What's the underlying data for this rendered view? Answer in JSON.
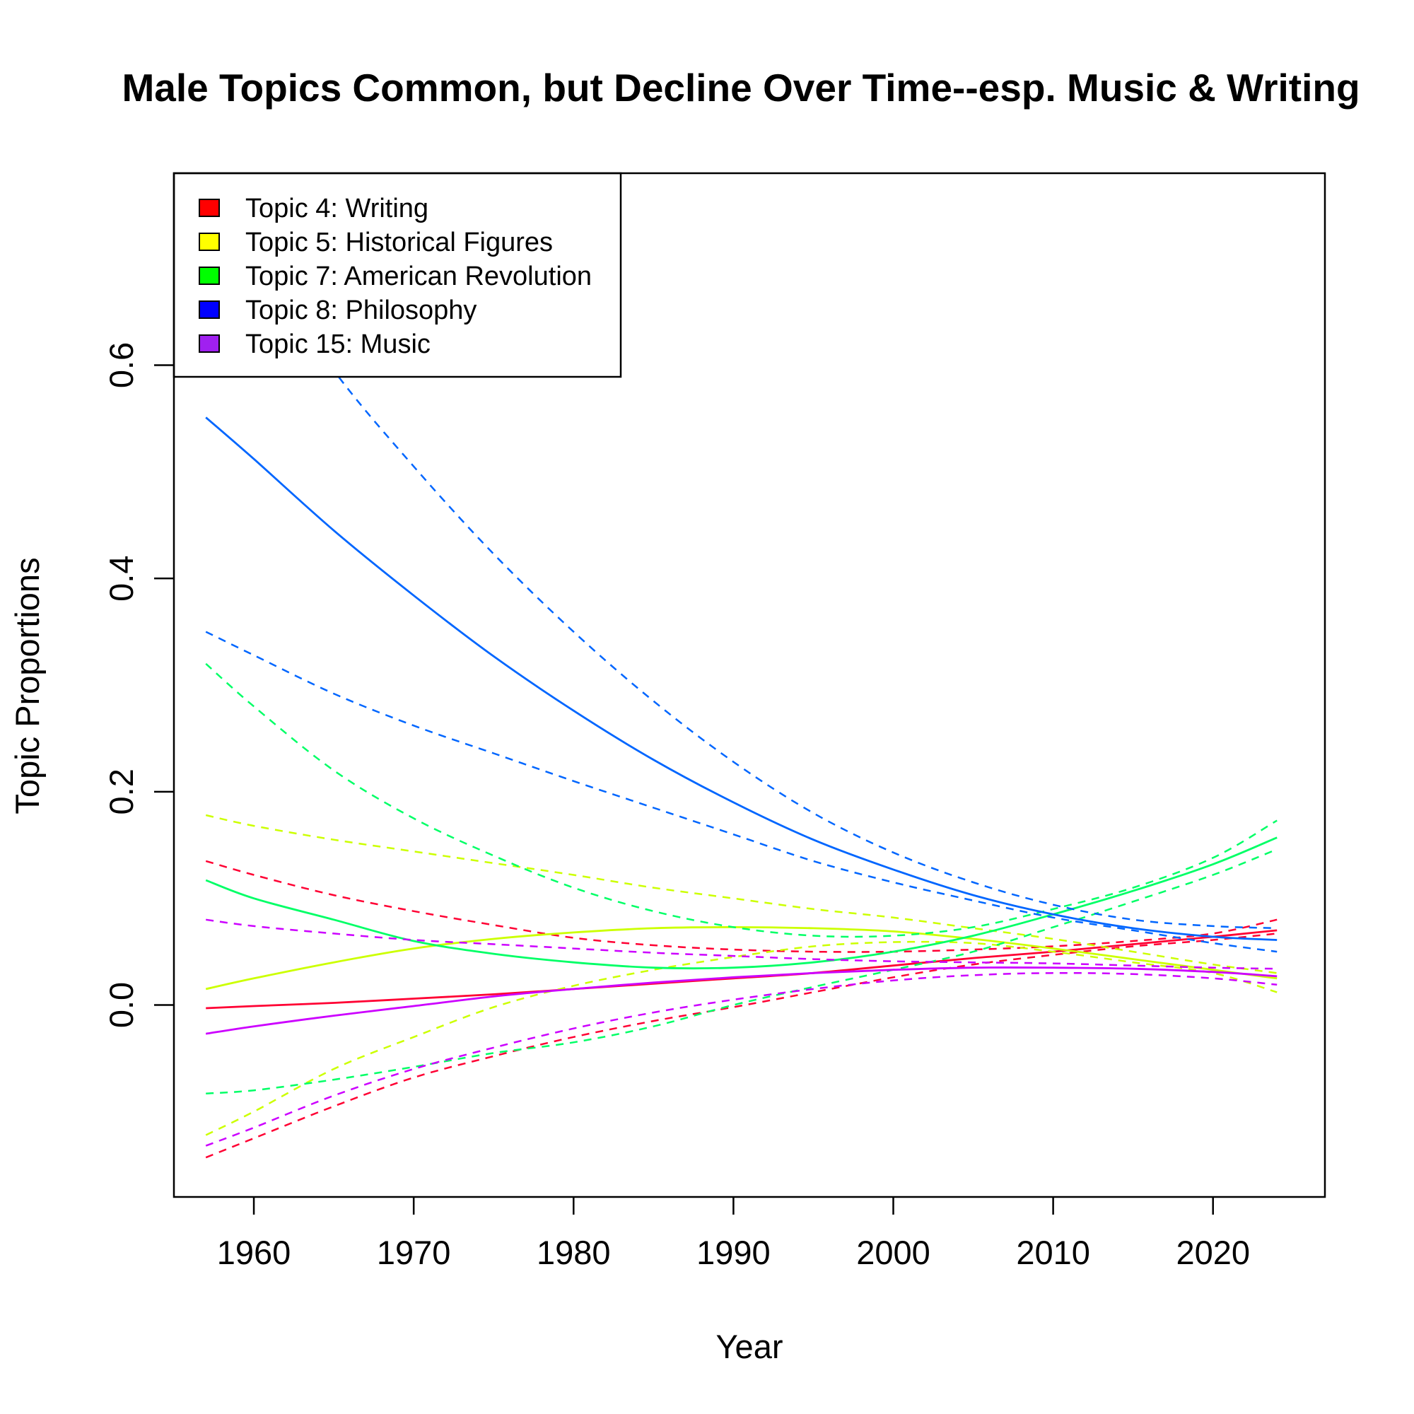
{
  "chart_data": {
    "type": "line",
    "title": "Male Topics Common, but Decline Over Time--esp. Music & Writing",
    "xlabel": "Year",
    "ylabel": "Topic Proportions",
    "xlim": [
      1955,
      2027
    ],
    "ylim": [
      -0.18,
      0.78
    ],
    "xticks": [
      1960,
      1970,
      1980,
      1990,
      2000,
      2010,
      2020
    ],
    "yticks": [
      0.0,
      0.2,
      0.4,
      0.6
    ],
    "ytick_labels": [
      "0.0",
      "0.2",
      "0.4",
      "0.6"
    ],
    "legend_position": "top-left",
    "x": [
      1957,
      1960,
      1965,
      1970,
      1975,
      1980,
      1985,
      1990,
      1995,
      2000,
      2005,
      2010,
      2015,
      2020,
      2024
    ],
    "series": [
      {
        "name": "Topic 4: Writing",
        "legend_color": "#FF0000",
        "line_color": "#FF0033",
        "values": [
          -0.003,
          -0.001,
          0.002,
          0.006,
          0.01,
          0.015,
          0.02,
          0.025,
          0.03,
          0.037,
          0.044,
          0.05,
          0.057,
          0.064,
          0.07
        ],
        "lower": [
          -0.143,
          -0.125,
          -0.095,
          -0.068,
          -0.048,
          -0.03,
          -0.015,
          -0.002,
          0.012,
          0.026,
          0.038,
          0.047,
          0.055,
          0.061,
          0.067
        ],
        "upper": [
          0.135,
          0.122,
          0.103,
          0.088,
          0.075,
          0.063,
          0.056,
          0.052,
          0.05,
          0.05,
          0.052,
          0.055,
          0.06,
          0.067,
          0.08
        ]
      },
      {
        "name": "Topic 5: Historical Figures",
        "legend_color": "#FFFF00",
        "line_color": "#CCFF00",
        "values": [
          0.015,
          0.025,
          0.04,
          0.053,
          0.062,
          0.068,
          0.072,
          0.073,
          0.072,
          0.069,
          0.062,
          0.053,
          0.043,
          0.033,
          0.025
        ],
        "lower": [
          -0.122,
          -0.1,
          -0.06,
          -0.03,
          -0.002,
          0.018,
          0.033,
          0.045,
          0.055,
          0.059,
          0.058,
          0.05,
          0.04,
          0.03,
          0.012
        ],
        "upper": [
          0.178,
          0.168,
          0.155,
          0.144,
          0.133,
          0.122,
          0.11,
          0.1,
          0.09,
          0.082,
          0.072,
          0.062,
          0.05,
          0.038,
          0.03
        ]
      },
      {
        "name": "Topic 7: American Revolution",
        "legend_color": "#00FF00",
        "line_color": "#00FF66",
        "values": [
          0.117,
          0.1,
          0.08,
          0.06,
          0.048,
          0.04,
          0.035,
          0.035,
          0.04,
          0.05,
          0.065,
          0.085,
          0.107,
          0.132,
          0.157
        ],
        "lower": [
          -0.083,
          -0.08,
          -0.07,
          -0.058,
          -0.045,
          -0.035,
          -0.02,
          0.0,
          0.017,
          0.033,
          0.05,
          0.073,
          0.097,
          0.122,
          0.146
        ],
        "upper": [
          0.32,
          0.28,
          0.22,
          0.175,
          0.14,
          0.11,
          0.088,
          0.073,
          0.065,
          0.065,
          0.073,
          0.09,
          0.11,
          0.138,
          0.173
        ]
      },
      {
        "name": "Topic 8: Philosophy",
        "legend_color": "#0000FF",
        "line_color": "#0066FF",
        "values": [
          0.551,
          0.512,
          0.445,
          0.384,
          0.327,
          0.276,
          0.23,
          0.19,
          0.155,
          0.127,
          0.103,
          0.085,
          0.072,
          0.064,
          0.061
        ],
        "lower": [
          0.35,
          0.328,
          0.292,
          0.262,
          0.236,
          0.21,
          0.185,
          0.16,
          0.135,
          0.115,
          0.098,
          0.082,
          0.07,
          0.058,
          0.05
        ],
        "upper": [
          0.76,
          0.705,
          0.595,
          0.505,
          0.423,
          0.35,
          0.285,
          0.228,
          0.18,
          0.143,
          0.115,
          0.094,
          0.08,
          0.074,
          0.072
        ]
      },
      {
        "name": "Topic 15: Music",
        "legend_color": "#A020F0",
        "line_color": "#CC00FF",
        "values": [
          -0.027,
          -0.02,
          -0.01,
          -0.001,
          0.008,
          0.015,
          0.021,
          0.026,
          0.03,
          0.033,
          0.035,
          0.035,
          0.034,
          0.031,
          0.027
        ],
        "lower": [
          -0.132,
          -0.115,
          -0.085,
          -0.06,
          -0.04,
          -0.022,
          -0.007,
          0.005,
          0.015,
          0.023,
          0.028,
          0.03,
          0.029,
          0.025,
          0.019
        ],
        "upper": [
          0.08,
          0.074,
          0.067,
          0.061,
          0.057,
          0.053,
          0.049,
          0.046,
          0.043,
          0.041,
          0.04,
          0.039,
          0.037,
          0.035,
          0.034
        ]
      }
    ]
  }
}
